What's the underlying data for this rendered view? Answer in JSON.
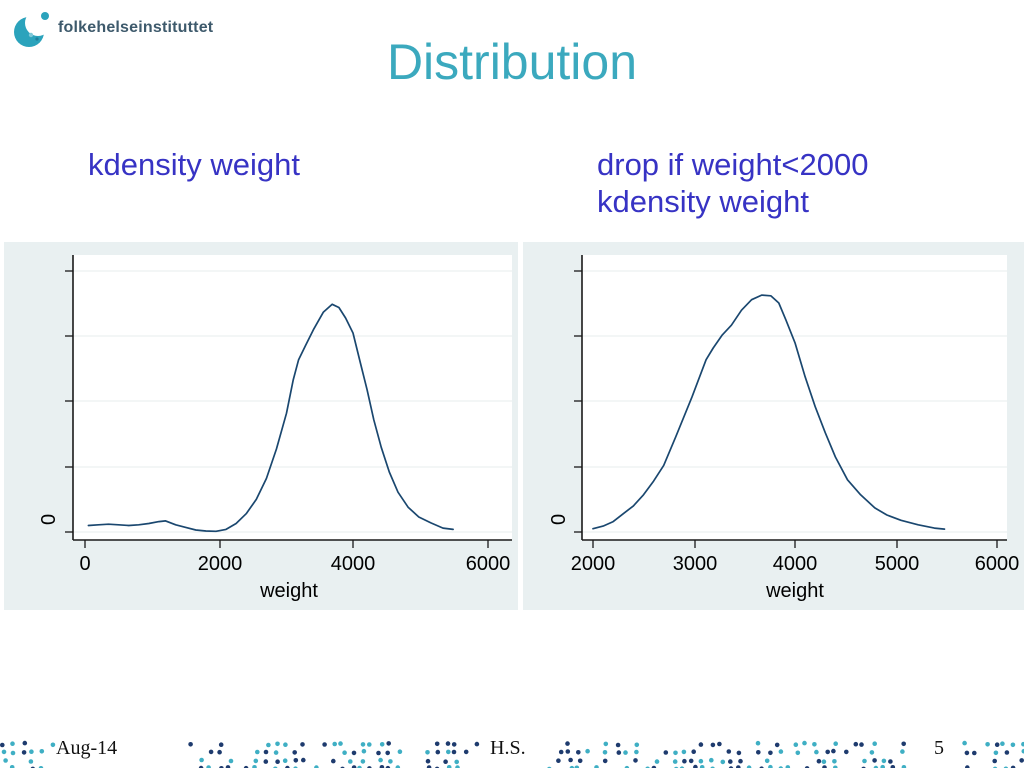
{
  "slide": {
    "logo_text": "folkehelseinstituttet",
    "title": "Distribution",
    "captions": {
      "left": "kdensity weight",
      "right_line1": "drop if weight<2000",
      "right_line2": "kdensity weight"
    },
    "footer": {
      "date": "Aug-14",
      "author": "H.S.",
      "page_number": "5"
    }
  },
  "colors": {
    "title": "#3BA9BE",
    "caption": "#3733C4",
    "logo_text": "#3E5A6C",
    "logo_icon": "#2BA3BC",
    "logo_dot_light": "#7EC8D8",
    "logo_dot_dark": "#1F7F9C",
    "panel_bg": "#E9F0F1",
    "plot_bg": "#FFFFFF",
    "gridline": "#E7EDEE",
    "axis": "#1A1A1A",
    "curve": "#1A476F",
    "footer_text": "#111111",
    "dot_teal": "#3FAFC4",
    "dot_navy": "#1E3B6E"
  },
  "chart_data": [
    {
      "type": "line",
      "title": "",
      "subtitle_command": "kdensity weight",
      "xlabel": "weight",
      "ylabel": "",
      "x_ticks": [
        "0",
        "2000",
        "4000",
        "6000"
      ],
      "y_zero_label": "0",
      "y_unlabeled_ticks": 4,
      "xlim": [
        0,
        6000
      ],
      "ylim": [
        0,
        4
      ],
      "grid": true,
      "legend": "none",
      "series": [
        {
          "name": "kdensity weight",
          "color": "#1A476F",
          "points": [
            [
              50,
              0.1
            ],
            [
              200,
              0.11
            ],
            [
              350,
              0.12
            ],
            [
              500,
              0.11
            ],
            [
              650,
              0.1
            ],
            [
              800,
              0.11
            ],
            [
              950,
              0.13
            ],
            [
              1100,
              0.16
            ],
            [
              1200,
              0.17
            ],
            [
              1350,
              0.11
            ],
            [
              1500,
              0.07
            ],
            [
              1650,
              0.03
            ],
            [
              1800,
              0.015
            ],
            [
              1950,
              0.01
            ],
            [
              2100,
              0.04
            ],
            [
              2250,
              0.13
            ],
            [
              2400,
              0.28
            ],
            [
              2550,
              0.5
            ],
            [
              2700,
              0.82
            ],
            [
              2850,
              1.27
            ],
            [
              3000,
              1.82
            ],
            [
              3100,
              2.33
            ],
            [
              3180,
              2.64
            ],
            [
              3280,
              2.85
            ],
            [
              3400,
              3.1
            ],
            [
              3550,
              3.37
            ],
            [
              3680,
              3.49
            ],
            [
              3780,
              3.44
            ],
            [
              3880,
              3.28
            ],
            [
              3990,
              3.05
            ],
            [
              4100,
              2.59
            ],
            [
              4200,
              2.18
            ],
            [
              4300,
              1.72
            ],
            [
              4410,
              1.3
            ],
            [
              4530,
              0.92
            ],
            [
              4660,
              0.61
            ],
            [
              4810,
              0.38
            ],
            [
              4970,
              0.23
            ],
            [
              5150,
              0.14
            ],
            [
              5330,
              0.06
            ],
            [
              5480,
              0.04
            ]
          ]
        }
      ]
    },
    {
      "type": "line",
      "title": "",
      "subtitle_command": "drop if weight<2000 ; kdensity weight",
      "xlabel": "weight",
      "ylabel": "",
      "x_ticks": [
        "2000",
        "3000",
        "4000",
        "5000",
        "6000"
      ],
      "y_zero_label": "0",
      "y_unlabeled_ticks": 4,
      "xlim": [
        2000,
        6000
      ],
      "ylim": [
        0,
        4
      ],
      "grid": true,
      "legend": "none",
      "series": [
        {
          "name": "kdensity weight (weight>=2000)",
          "color": "#1A476F",
          "points": [
            [
              2000,
              0.05
            ],
            [
              2100,
              0.09
            ],
            [
              2200,
              0.16
            ],
            [
              2300,
              0.28
            ],
            [
              2400,
              0.4
            ],
            [
              2500,
              0.57
            ],
            [
              2600,
              0.78
            ],
            [
              2700,
              1.02
            ],
            [
              2820,
              1.46
            ],
            [
              2980,
              2.07
            ],
            [
              3120,
              2.64
            ],
            [
              3190,
              2.82
            ],
            [
              3280,
              3.02
            ],
            [
              3370,
              3.17
            ],
            [
              3470,
              3.4
            ],
            [
              3570,
              3.56
            ],
            [
              3670,
              3.63
            ],
            [
              3760,
              3.62
            ],
            [
              3840,
              3.51
            ],
            [
              3910,
              3.25
            ],
            [
              4000,
              2.9
            ],
            [
              4100,
              2.38
            ],
            [
              4200,
              1.92
            ],
            [
              4300,
              1.52
            ],
            [
              4400,
              1.15
            ],
            [
              4520,
              0.8
            ],
            [
              4650,
              0.57
            ],
            [
              4790,
              0.37
            ],
            [
              4910,
              0.26
            ],
            [
              5050,
              0.18
            ],
            [
              5220,
              0.11
            ],
            [
              5380,
              0.06
            ],
            [
              5480,
              0.045
            ]
          ]
        }
      ]
    }
  ]
}
